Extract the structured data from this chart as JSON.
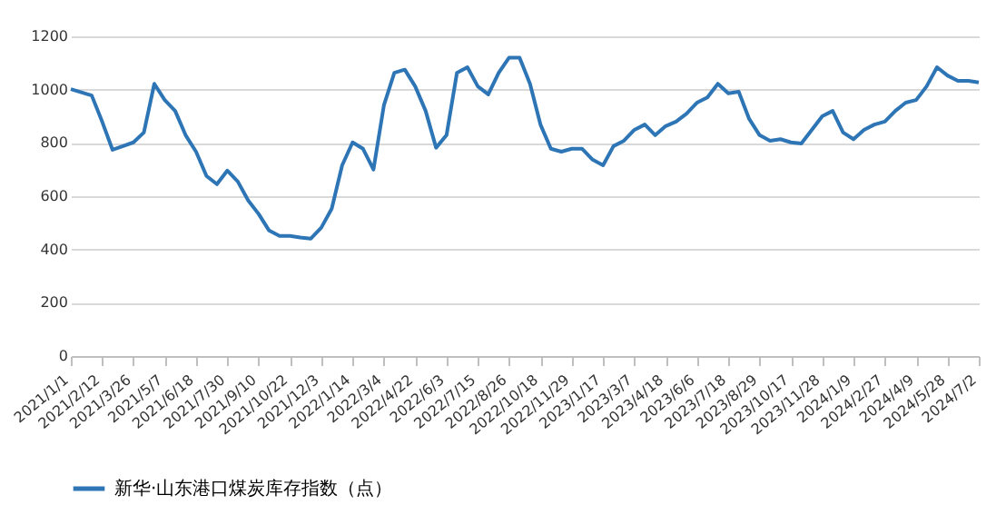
{
  "chart_data": {
    "type": "line",
    "categories": [
      "2021/1/1",
      null,
      null,
      "2021/2/12",
      null,
      null,
      "2021/3/26",
      null,
      null,
      "2021/5/7",
      null,
      null,
      "2021/6/18",
      null,
      null,
      "2021/7/30",
      null,
      null,
      "2021/9/10",
      null,
      null,
      "2021/10/22",
      null,
      null,
      "2021/12/3",
      null,
      null,
      "2022/1/14",
      null,
      null,
      "2022/3/4",
      null,
      null,
      "2022/4/22",
      null,
      null,
      "2022/6/3",
      null,
      null,
      "2022/7/15",
      null,
      null,
      "2022/8/26",
      null,
      null,
      "2022/10/18",
      null,
      null,
      "2022/11/29",
      null,
      null,
      "2023/1/17",
      null,
      null,
      "2023/3/7",
      null,
      null,
      "2023/4/18",
      null,
      null,
      "2023/6/6",
      null,
      null,
      "2023/7/18",
      null,
      null,
      "2023/8/29",
      null,
      null,
      "2023/10/17",
      null,
      null,
      "2023/11/28",
      null,
      null,
      "2024/1/9",
      null,
      null,
      "2024/2/27",
      null,
      null,
      "2024/4/9",
      null,
      null,
      "2024/5/28",
      null,
      null,
      "2024/7/2"
    ],
    "series": [
      {
        "name": "新华·山东港口煤炭库存指数（点）",
        "color": "#2e75b6",
        "values": [
          1002,
          990,
          978,
          880,
          774,
          788,
          802,
          839,
          1022,
          961,
          920,
          829,
          767,
          676,
          645,
          696,
          655,
          584,
          533,
          471,
          451,
          451,
          445,
          441,
          482,
          553,
          716,
          802,
          778,
          700,
          941,
          1063,
          1075,
          1012,
          920,
          782,
          829,
          1063,
          1084,
          1012,
          982,
          1063,
          1120,
          1120,
          1022,
          869,
          778,
          767,
          778,
          778,
          737,
          716,
          788,
          808,
          849,
          869,
          829,
          863,
          880,
          910,
          951,
          971,
          1022,
          986,
          992,
          890,
          829,
          808,
          814,
          802,
          798,
          849,
          900,
          920,
          839,
          814,
          849,
          869,
          880,
          920,
          951,
          961,
          1012,
          1084,
          1053,
          1033,
          1033,
          1027
        ]
      }
    ],
    "ylim": [
      0,
      1200
    ],
    "yticks": [
      0,
      200,
      400,
      600,
      800,
      1000,
      1200
    ],
    "grid": "y",
    "legend": "bottom",
    "line_style": "solid",
    "marker": "none"
  }
}
